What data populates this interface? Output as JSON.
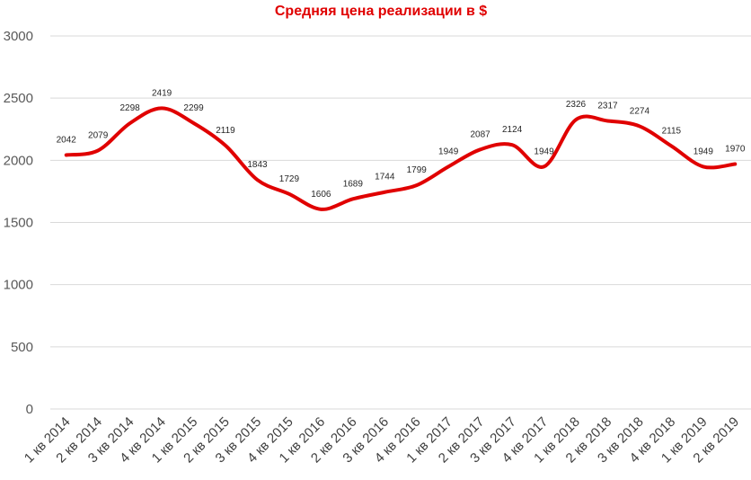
{
  "chart_data": {
    "type": "line",
    "title": "Средняя цена реализации в $",
    "categories": [
      "1 кв 2014",
      "2 кв 2014",
      "3 кв 2014",
      "4 кв 2014",
      "1 кв 2015",
      "2 кв 2015",
      "3 кв 2015",
      "4 кв 2015",
      "1 кв 2016",
      "2 кв 2016",
      "3 кв 2016",
      "4 кв 2016",
      "1 кв 2017",
      "2 кв 2017",
      "3 кв 2017",
      "4 кв 2017",
      "1 кв 2018",
      "2 кв 2018",
      "3 кв 2018",
      "4 кв 2018",
      "1 кв 2019",
      "2 кв 2019"
    ],
    "values": [
      2042,
      2079,
      2298,
      2419,
      2299,
      2119,
      1843,
      1729,
      1606,
      1689,
      1744,
      1799,
      1949,
      2087,
      2124,
      1949,
      2326,
      2317,
      2274,
      2115,
      1949,
      1970
    ],
    "ylim": [
      0,
      3000
    ],
    "yticks": [
      0,
      500,
      1000,
      1500,
      2000,
      2500,
      3000
    ],
    "grid": true,
    "legend": "none",
    "line_color": "#e00000",
    "smooth": true
  }
}
